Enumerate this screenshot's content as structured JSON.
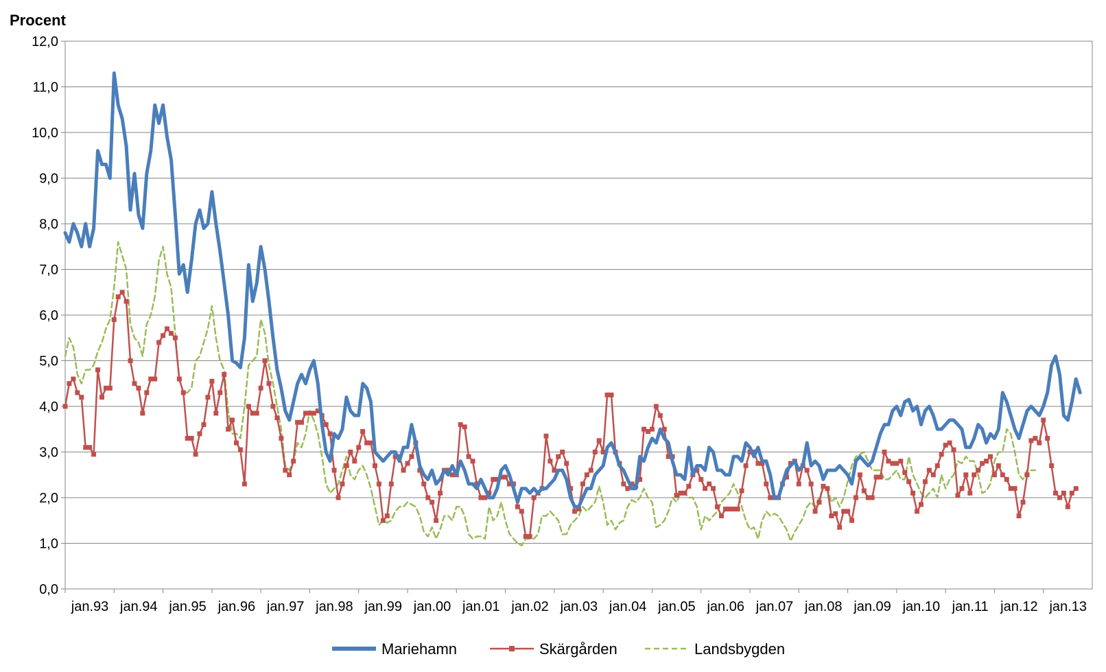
{
  "chart_data": {
    "type": "line",
    "ylabel": "Procent",
    "ylim": [
      0,
      12
    ],
    "yticks": [
      "0,0",
      "1,0",
      "2,0",
      "3,0",
      "4,0",
      "5,0",
      "6,0",
      "7,0",
      "8,0",
      "9,0",
      "10,0",
      "11,0",
      "12,0"
    ],
    "xticks": [
      "jan.93",
      "jan.94",
      "jan.95",
      "jan.96",
      "jan.97",
      "jan.98",
      "jan.99",
      "jan.00",
      "jan.01",
      "jan.02",
      "jan.03",
      "jan.04",
      "jan.05",
      "jan.06",
      "jan.07",
      "jan.08",
      "jan.09",
      "jan.10",
      "jan.11",
      "jan.12",
      "jan.13"
    ],
    "x_start": "jan.93",
    "grid": true,
    "legend_position": "bottom",
    "series": [
      {
        "name": "Mariehamn",
        "color": "#4a7ebb",
        "style": "thick-solid",
        "values": [
          7.8,
          7.6,
          8.0,
          7.8,
          7.5,
          8.0,
          7.5,
          7.9,
          9.6,
          9.3,
          9.3,
          9.0,
          11.3,
          10.6,
          10.3,
          9.7,
          8.3,
          9.1,
          8.2,
          7.9,
          9.1,
          9.6,
          10.6,
          10.2,
          10.6,
          9.9,
          9.4,
          8.2,
          6.9,
          7.1,
          6.5,
          7.2,
          8.0,
          8.3,
          7.9,
          8.0,
          8.7,
          8.0,
          7.4,
          6.7,
          6.0,
          5.0,
          4.95,
          4.85,
          5.5,
          7.1,
          6.3,
          6.7,
          7.5,
          7.0,
          6.3,
          5.5,
          4.8,
          4.4,
          3.9,
          3.7,
          4.1,
          4.5,
          4.7,
          4.5,
          4.8,
          5.0,
          4.5,
          3.6,
          3.0,
          2.8,
          3.4,
          3.3,
          3.5,
          4.2,
          3.9,
          3.8,
          3.8,
          4.5,
          4.4,
          4.1,
          3.0,
          2.9,
          2.8,
          2.9,
          3.0,
          3.0,
          2.8,
          3.1,
          3.1,
          3.6,
          3.2,
          2.7,
          2.5,
          2.4,
          2.6,
          2.3,
          2.4,
          2.6,
          2.5,
          2.7,
          2.5,
          2.8,
          2.6,
          2.3,
          2.3,
          2.2,
          2.4,
          2.2,
          2.0,
          2.0,
          2.2,
          2.6,
          2.7,
          2.5,
          2.2,
          1.9,
          2.2,
          2.2,
          2.1,
          2.2,
          2.1,
          2.2,
          2.2,
          2.3,
          2.4,
          2.6,
          2.6,
          2.4,
          2.0,
          1.8,
          1.8,
          2.0,
          2.2,
          2.2,
          2.5,
          2.6,
          2.7,
          3.1,
          3.2,
          3.0,
          2.7,
          2.6,
          2.4,
          2.2,
          2.2,
          2.9,
          2.8,
          3.1,
          3.3,
          3.2,
          3.5,
          3.3,
          3.2,
          2.8,
          2.5,
          2.5,
          2.4,
          3.1,
          2.5,
          2.7,
          2.7,
          2.6,
          3.1,
          3.0,
          2.6,
          2.6,
          2.5,
          2.5,
          2.9,
          2.9,
          2.8,
          3.2,
          3.1,
          2.9,
          3.1,
          2.8,
          2.8,
          2.5,
          2.0,
          2.0,
          2.3,
          2.6,
          2.7,
          2.8,
          2.6,
          2.7,
          3.2,
          2.7,
          2.8,
          2.7,
          2.4,
          2.6,
          2.6,
          2.6,
          2.7,
          2.6,
          2.5,
          2.3,
          2.8,
          2.9,
          2.8,
          2.7,
          2.8,
          3.1,
          3.4,
          3.6,
          3.6,
          3.9,
          4.0,
          3.8,
          4.1,
          4.15,
          3.9,
          4.0,
          3.6,
          3.9,
          4.0,
          3.8,
          3.5,
          3.5,
          3.6,
          3.7,
          3.7,
          3.6,
          3.5,
          3.1,
          3.1,
          3.3,
          3.6,
          3.5,
          3.2,
          3.4,
          3.3,
          3.5,
          4.3,
          4.1,
          3.8,
          3.5,
          3.3,
          3.6,
          3.9,
          4.0,
          3.9,
          3.8,
          4.0,
          4.3,
          4.9,
          5.1,
          4.7,
          3.8,
          3.7,
          4.1,
          4.6,
          4.3
        ]
      },
      {
        "name": "Skärgården",
        "color": "#c0504d",
        "style": "solid-square-markers",
        "values": [
          4.0,
          4.5,
          4.6,
          4.3,
          4.2,
          3.1,
          3.1,
          2.95,
          4.8,
          4.2,
          4.4,
          4.4,
          5.9,
          6.4,
          6.5,
          6.3,
          5.0,
          4.5,
          4.4,
          3.85,
          4.3,
          4.6,
          4.6,
          5.4,
          5.55,
          5.7,
          5.6,
          5.5,
          4.6,
          4.3,
          3.3,
          3.3,
          2.95,
          3.4,
          3.6,
          4.2,
          4.55,
          3.85,
          4.3,
          4.7,
          3.5,
          3.7,
          3.2,
          3.05,
          2.3,
          4.0,
          3.85,
          3.85,
          4.4,
          5.0,
          4.5,
          4.0,
          3.75,
          3.3,
          2.6,
          2.5,
          2.8,
          3.65,
          3.65,
          3.85,
          3.85,
          3.85,
          3.9,
          3.8,
          3.6,
          3.4,
          2.6,
          2.0,
          2.3,
          2.7,
          3.0,
          2.8,
          3.1,
          3.45,
          3.2,
          3.2,
          2.7,
          2.3,
          1.5,
          1.6,
          2.3,
          2.9,
          2.9,
          2.6,
          2.75,
          2.9,
          3.2,
          2.6,
          2.3,
          2.0,
          1.9,
          1.5,
          2.1,
          2.6,
          2.6,
          2.5,
          2.5,
          3.6,
          3.55,
          2.9,
          2.8,
          2.3,
          2.0,
          2.0,
          2.1,
          2.4,
          2.4,
          2.45,
          2.45,
          2.3,
          2.3,
          1.8,
          1.7,
          1.15,
          1.15,
          2.0,
          2.1,
          2.2,
          3.35,
          2.8,
          2.6,
          2.9,
          3.0,
          2.75,
          2.2,
          1.7,
          1.75,
          2.3,
          2.5,
          2.6,
          3.0,
          3.25,
          3.0,
          4.25,
          4.25,
          3.0,
          2.75,
          2.3,
          2.2,
          2.3,
          2.25,
          2.4,
          3.5,
          3.45,
          3.5,
          4.0,
          3.8,
          3.5,
          2.9,
          2.9,
          2.05,
          2.1,
          2.1,
          2.25,
          2.5,
          2.6,
          2.4,
          2.2,
          2.3,
          2.2,
          1.8,
          1.6,
          1.75,
          1.75,
          1.75,
          1.75,
          2.15,
          2.7,
          3.0,
          3.0,
          2.75,
          2.75,
          2.3,
          2.0,
          2.0,
          2.0,
          2.3,
          2.45,
          2.75,
          2.8,
          2.3,
          2.7,
          2.6,
          2.3,
          1.7,
          1.9,
          2.25,
          2.2,
          1.6,
          1.65,
          1.35,
          1.7,
          1.7,
          1.5,
          2.0,
          2.5,
          2.15,
          2.0,
          2.0,
          2.45,
          2.45,
          3.0,
          2.8,
          2.75,
          2.75,
          2.8,
          2.55,
          2.35,
          2.1,
          1.7,
          1.85,
          2.35,
          2.6,
          2.5,
          2.7,
          2.95,
          3.15,
          3.2,
          3.05,
          2.05,
          2.2,
          2.5,
          2.1,
          2.5,
          2.6,
          2.75,
          2.8,
          2.9,
          2.5,
          2.7,
          2.5,
          2.4,
          2.2,
          2.2,
          1.6,
          1.9,
          2.5,
          3.25,
          3.3,
          3.2,
          3.7,
          3.3,
          2.7,
          2.1,
          2.0,
          2.1,
          1.8,
          2.1,
          2.2
        ]
      },
      {
        "name": "Landsbygden",
        "color": "#9bbb59",
        "style": "dashed",
        "values": [
          5.1,
          5.5,
          5.3,
          4.7,
          4.5,
          4.8,
          4.8,
          4.9,
          5.2,
          5.4,
          5.7,
          5.9,
          6.6,
          7.6,
          7.3,
          7.0,
          5.8,
          5.5,
          5.4,
          5.1,
          5.8,
          6.0,
          6.4,
          7.2,
          7.5,
          6.9,
          6.6,
          5.6,
          4.6,
          4.3,
          4.3,
          4.4,
          5.0,
          5.1,
          5.4,
          5.7,
          6.2,
          5.5,
          5.0,
          4.8,
          3.9,
          3.4,
          3.4,
          3.3,
          4.0,
          4.9,
          5.0,
          5.1,
          5.9,
          5.6,
          4.9,
          4.5,
          4.0,
          3.5,
          2.7,
          2.6,
          2.8,
          3.2,
          3.1,
          3.4,
          3.9,
          3.7,
          3.4,
          2.9,
          2.3,
          2.1,
          2.2,
          2.3,
          2.6,
          2.9,
          2.5,
          2.4,
          2.6,
          2.7,
          2.5,
          2.2,
          1.8,
          1.4,
          1.5,
          1.45,
          1.5,
          1.7,
          1.8,
          1.8,
          1.9,
          1.85,
          1.8,
          1.6,
          1.25,
          1.15,
          1.35,
          1.1,
          1.3,
          1.6,
          1.6,
          1.5,
          1.8,
          1.8,
          1.6,
          1.2,
          1.1,
          1.15,
          1.15,
          1.1,
          1.8,
          1.5,
          1.6,
          1.9,
          1.5,
          1.2,
          1.1,
          1.0,
          0.95,
          1.1,
          1.1,
          1.1,
          1.2,
          1.6,
          1.6,
          1.7,
          1.6,
          1.5,
          1.2,
          1.2,
          1.4,
          1.5,
          1.6,
          1.8,
          1.7,
          1.8,
          1.9,
          2.25,
          1.9,
          1.4,
          1.5,
          1.3,
          1.45,
          1.5,
          1.8,
          1.95,
          1.9,
          2.0,
          2.2,
          2.0,
          1.9,
          1.35,
          1.4,
          1.5,
          1.7,
          2.0,
          1.9,
          2.1,
          2.1,
          2.0,
          2.0,
          1.8,
          1.3,
          1.6,
          1.5,
          1.6,
          1.7,
          1.9,
          2.0,
          2.1,
          2.3,
          2.1,
          1.8,
          1.5,
          1.3,
          1.35,
          1.1,
          1.5,
          1.7,
          1.6,
          1.65,
          1.6,
          1.45,
          1.3,
          1.05,
          1.25,
          1.4,
          1.55,
          1.8,
          1.9,
          1.8,
          2.0,
          2.2,
          2.2,
          1.9,
          2.0,
          1.8,
          2.0,
          2.35,
          2.7,
          2.9,
          2.95,
          3.0,
          2.8,
          2.6,
          2.6,
          2.6,
          2.4,
          2.4,
          2.5,
          2.6,
          2.4,
          2.4,
          2.9,
          2.5,
          2.3,
          2.1,
          2.0,
          2.1,
          2.2,
          2.0,
          2.5,
          2.2,
          2.4,
          2.5,
          2.8,
          2.75,
          2.9,
          2.8,
          2.8,
          2.5,
          2.1,
          2.15,
          2.3,
          2.8,
          3.0,
          3.0,
          3.5,
          3.4,
          3.0,
          2.5,
          2.4,
          2.6,
          2.6,
          2.6
        ]
      }
    ]
  }
}
